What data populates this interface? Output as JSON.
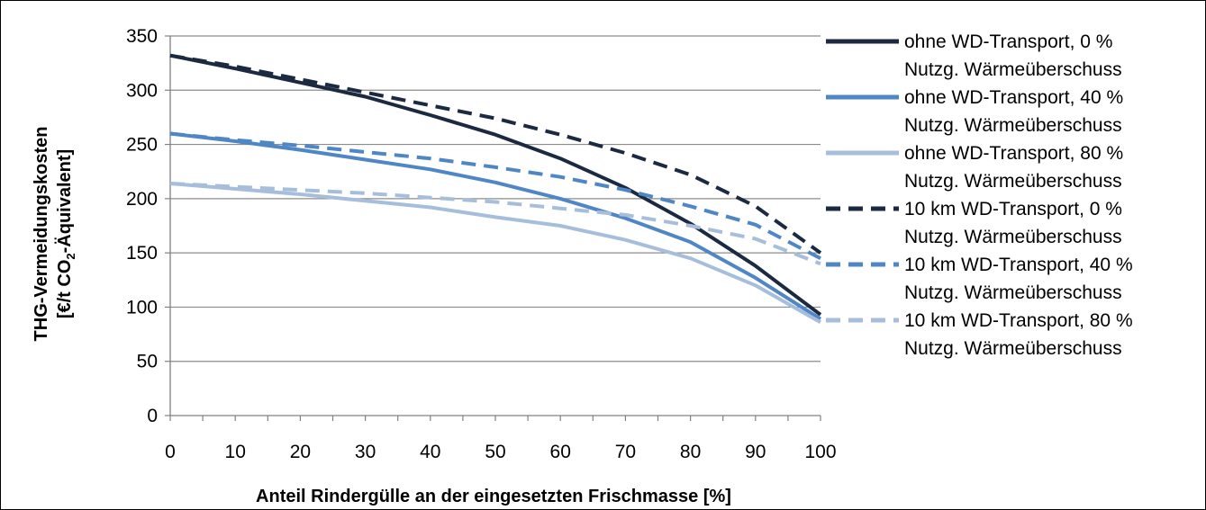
{
  "chart_data": {
    "type": "line",
    "xlabel": "Anteil Rindergülle an der eingesetzten Frischmasse  [%]",
    "ylabel_line1": "THG-Vermeidungskosten",
    "ylabel_line2_pre": "[€/t CO",
    "ylabel_line2_sub": "2",
    "ylabel_line2_post": "-Äquivalent]",
    "xlim": [
      0,
      100
    ],
    "ylim": [
      0,
      350
    ],
    "x_ticks": [
      "0",
      "10",
      "20",
      "30",
      "40",
      "50",
      "60",
      "70",
      "80",
      "90",
      "100"
    ],
    "y_ticks": [
      "0",
      "50",
      "100",
      "150",
      "200",
      "250",
      "300",
      "350"
    ],
    "grid": "horizontal",
    "legend_position": "right",
    "x": [
      0,
      10,
      20,
      30,
      40,
      50,
      60,
      70,
      80,
      90,
      100
    ],
    "series": [
      {
        "name_line1": "ohne WD-Transport, 0 %",
        "name_line2": "Nutzg. Wärmeüberschuss",
        "color": "#1b2a41",
        "dash": "solid",
        "values": [
          332,
          320,
          307,
          294,
          277,
          259,
          237,
          210,
          177,
          138,
          93
        ]
      },
      {
        "name_line1": "ohne WD-Transport, 40 %",
        "name_line2": "Nutzg. Wärmeüberschuss",
        "color": "#4f86c6",
        "dash": "solid",
        "values": [
          260,
          253,
          245,
          236,
          227,
          215,
          200,
          182,
          160,
          127,
          89
        ]
      },
      {
        "name_line1": "ohne WD-Transport, 80 %",
        "name_line2": "Nutzg. Wärmeüberschuss",
        "color": "#a6bedc",
        "dash": "solid",
        "values": [
          214,
          209,
          204,
          198,
          192,
          183,
          175,
          162,
          145,
          120,
          86
        ]
      },
      {
        "name_line1": "10 km WD-Transport, 0 %",
        "name_line2": "Nutzg. Wärmeüberschuss",
        "color": "#1b2a41",
        "dash": "dashed",
        "values": [
          332,
          322,
          310,
          298,
          286,
          274,
          259,
          242,
          222,
          193,
          150
        ]
      },
      {
        "name_line1": "10 km WD-Transport, 40 %",
        "name_line2": "Nutzg. Wärmeüberschuss",
        "color": "#4f86c6",
        "dash": "dashed",
        "values": [
          260,
          254,
          249,
          243,
          237,
          229,
          220,
          208,
          193,
          176,
          145
        ]
      },
      {
        "name_line1": "10 km WD-Transport, 80 %",
        "name_line2": "Nutzg. Wärmeüberschuss",
        "color": "#a6bedc",
        "dash": "dashed",
        "values": [
          214,
          211,
          208,
          205,
          201,
          197,
          191,
          185,
          175,
          163,
          140
        ]
      }
    ]
  }
}
